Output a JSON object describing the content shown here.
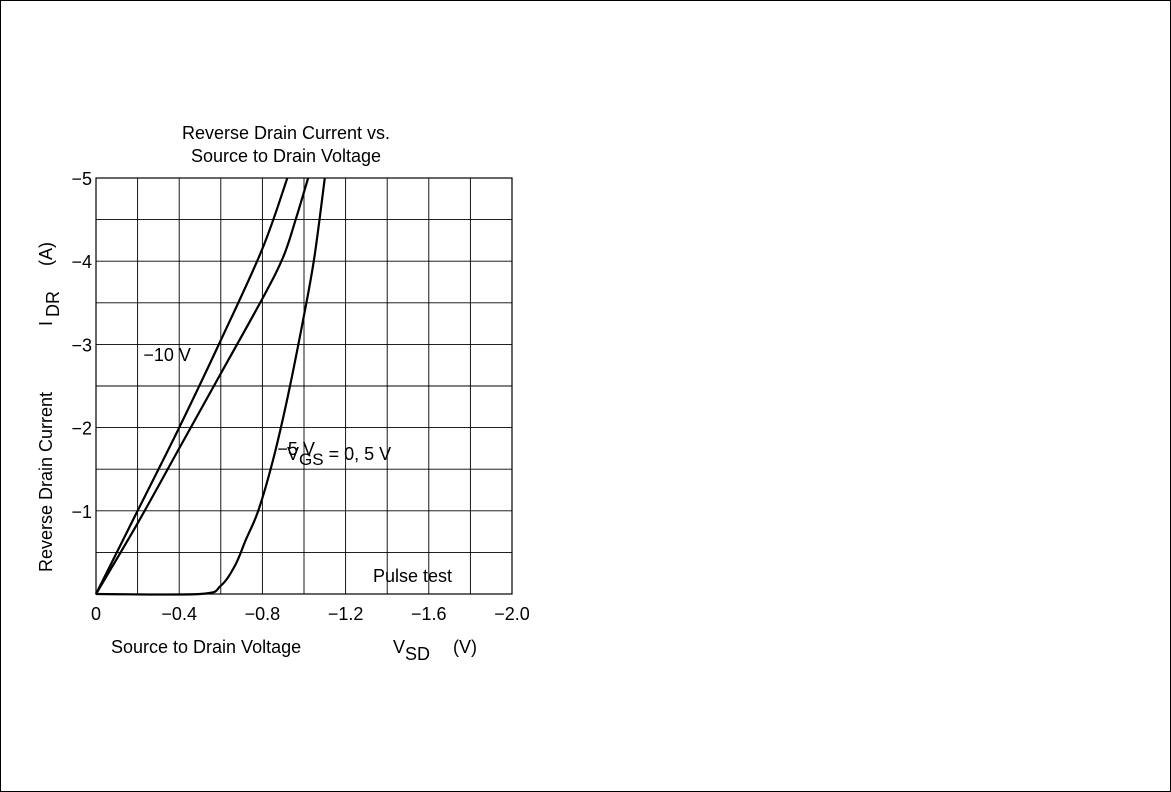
{
  "chart_data": {
    "type": "line",
    "title_lines": [
      "Reverse Drain Current vs.",
      "Source to Drain Voltage"
    ],
    "xlabel": "Source to Drain Voltage",
    "xlabel_symbol": "V",
    "xlabel_sub": "SD",
    "xlabel_unit": "(V)",
    "ylabel": "Reverse Drain Current",
    "ylabel_symbol": "I",
    "ylabel_sub": "DR",
    "ylabel_unit": "(A)",
    "xlim": [
      0,
      -2.0
    ],
    "ylim": [
      0,
      -5
    ],
    "grid": true,
    "x_ticks": [
      {
        "value": 0,
        "label": "0"
      },
      {
        "value": -0.4,
        "label": "−0.4"
      },
      {
        "value": -0.8,
        "label": "−0.8"
      },
      {
        "value": -1.2,
        "label": "−1.2"
      },
      {
        "value": -1.6,
        "label": "−1.6"
      },
      {
        "value": -2.0,
        "label": "−2.0"
      }
    ],
    "y_ticks": [
      {
        "value": -1,
        "label": "−1"
      },
      {
        "value": -2,
        "label": "−2"
      },
      {
        "value": -3,
        "label": "−3"
      },
      {
        "value": -4,
        "label": "−4"
      },
      {
        "value": -5,
        "label": "−5"
      }
    ],
    "series": [
      {
        "name": "−10 V",
        "label_pos": [
          -0.42,
          -2.8
        ],
        "points": [
          [
            0,
            0
          ],
          [
            -0.2,
            -1.0
          ],
          [
            -0.4,
            -2.0
          ],
          [
            -0.6,
            -3.05
          ],
          [
            -0.8,
            -4.15
          ],
          [
            -0.92,
            -5.0
          ]
        ]
      },
      {
        "name": "−5 V",
        "label_pos": [
          -0.92,
          -1.67
        ],
        "points": [
          [
            0,
            0
          ],
          [
            -0.2,
            -0.85
          ],
          [
            -0.4,
            -1.75
          ],
          [
            -0.6,
            -2.65
          ],
          [
            -0.8,
            -3.55
          ],
          [
            -0.9,
            -4.05
          ],
          [
            -0.96,
            -4.5
          ],
          [
            -1.02,
            -5.0
          ]
        ]
      },
      {
        "name": "",
        "points": [
          [
            0,
            0
          ],
          [
            -0.5,
            0
          ],
          [
            -0.6,
            -0.1
          ],
          [
            -0.67,
            -0.35
          ],
          [
            -0.72,
            -0.65
          ],
          [
            -0.78,
            -1.0
          ],
          [
            -0.85,
            -1.6
          ],
          [
            -0.92,
            -2.35
          ],
          [
            -1.0,
            -3.35
          ],
          [
            -1.05,
            -4.05
          ],
          [
            -1.1,
            -5.0
          ]
        ]
      }
    ],
    "annotations": {
      "vgs": {
        "prefix": "V",
        "sub": "GS",
        "suffix": " = 0, 5 V"
      },
      "pulse": "Pulse test"
    }
  }
}
